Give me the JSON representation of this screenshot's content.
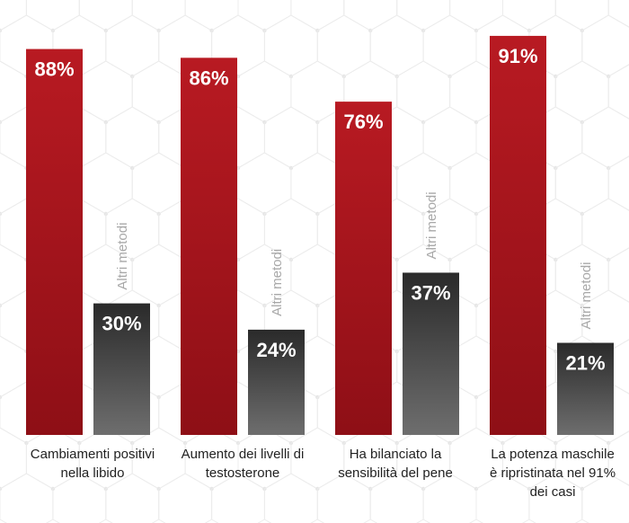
{
  "chart_data": {
    "type": "bar",
    "categories": [
      "Cambiamenti positivi nella libido",
      "Aumento dei livelli di testosterone",
      "Ha bilanciato la sensibilità del pene",
      "La potenza maschile è ripristinata nel 91% dei casi"
    ],
    "series": [
      {
        "values": [
          88,
          86,
          76,
          91
        ],
        "labels": [
          "88%",
          "86%",
          "76%",
          "91%"
        ],
        "color": "#b3161f"
      },
      {
        "name": "Altri metodi",
        "values": [
          30,
          24,
          37,
          21
        ],
        "labels": [
          "30%",
          "24%",
          "37%",
          "21%"
        ],
        "color": "#3a3a3a"
      }
    ],
    "ylim": [
      0,
      100
    ],
    "grid": false,
    "legend": "none"
  },
  "labels": {
    "cat_0": "Cambiamenti positivi nella libido",
    "cat_1": "Aumento dei livelli di testosterone",
    "cat_2": "Ha bilanciato la sensibilità del pene",
    "cat_3": "La potenza maschile è ripristinata nel 91% dei casi"
  }
}
